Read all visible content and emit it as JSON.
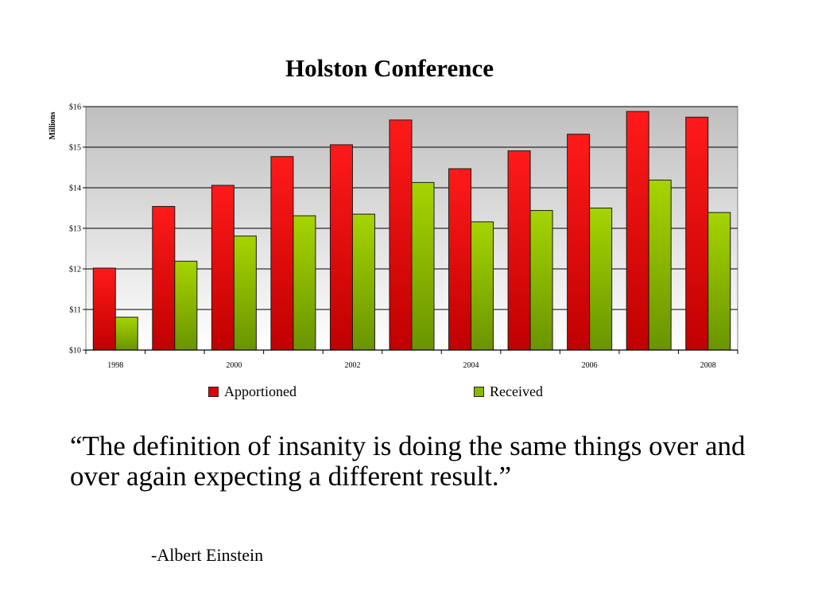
{
  "chart_data": {
    "type": "bar",
    "title": "Holston Conference",
    "ylabel": "Millions",
    "xlabel": "",
    "categories": [
      "1998",
      "1999",
      "2000",
      "2001",
      "2002",
      "2003",
      "2004",
      "2005",
      "2006",
      "2007",
      "2008"
    ],
    "x_tick_labels": [
      "1998",
      "",
      "2000",
      "",
      "2002",
      "",
      "2004",
      "",
      "2006",
      "",
      "2008"
    ],
    "series": [
      {
        "name": "Apportioned",
        "color": "#e30000",
        "values": [
          12.02,
          13.54,
          14.06,
          14.77,
          15.06,
          15.67,
          14.47,
          14.91,
          15.32,
          15.88,
          15.74
        ]
      },
      {
        "name": "Received",
        "color": "#88b800",
        "values": [
          10.81,
          12.19,
          12.81,
          13.31,
          13.35,
          14.13,
          13.16,
          13.44,
          13.5,
          14.19,
          13.39
        ]
      }
    ],
    "ylim": [
      10,
      16
    ],
    "y_ticks": [
      10,
      11,
      12,
      13,
      14,
      15,
      16
    ],
    "y_tick_labels": [
      "$10",
      "$11",
      "$12",
      "$13",
      "$14",
      "$15",
      "$16"
    ],
    "grid": true,
    "legend_position": "bottom"
  },
  "quote": {
    "text": "“The definition of insanity is doing the same things over and over again expecting a different result.”",
    "author": "-Albert Einstein"
  }
}
